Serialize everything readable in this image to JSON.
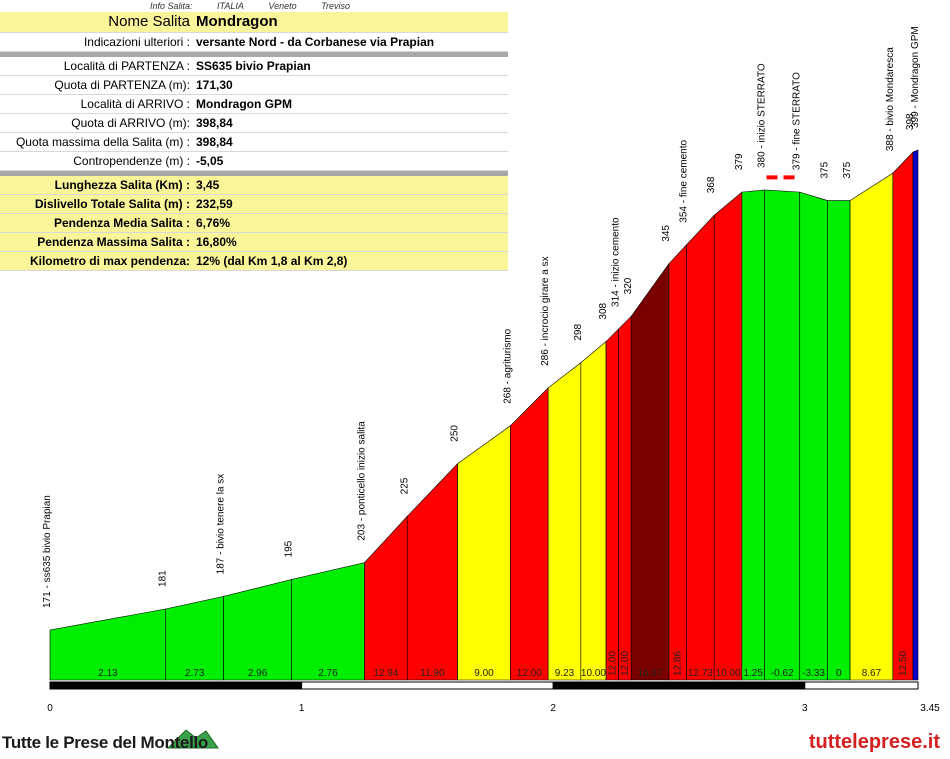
{
  "header": {
    "info_label": "Info Salita:",
    "country": "ITALIA",
    "region": "Veneto",
    "province": "Treviso"
  },
  "info": {
    "rows": [
      {
        "label": "Nome Salita",
        "value": "Mondragon",
        "style": "title"
      },
      {
        "label": "Indicazioni ulteriori :",
        "value": "versante Nord - da Corbanese via Prapian",
        "style": "plain"
      },
      {
        "style": "sep"
      },
      {
        "label": "Località di PARTENZA :",
        "value": "SS635 bivio Prapian",
        "style": "plain"
      },
      {
        "label": "Quota di PARTENZA (m):",
        "value": "171,30",
        "style": "plain"
      },
      {
        "label": "Località di ARRIVO :",
        "value": "Mondragon GPM",
        "style": "plain"
      },
      {
        "label": "Quota di ARRIVO (m):",
        "value": "398,84",
        "style": "plain"
      },
      {
        "label": "Quota massima della Salita (m) :",
        "value": "398,84",
        "style": "plain"
      },
      {
        "label": "Contropendenze (m) :",
        "value": "-5,05",
        "style": "plain"
      },
      {
        "style": "sep"
      },
      {
        "label": "Lunghezza Salita (Km) :",
        "value": "3,45",
        "style": "yellow"
      },
      {
        "label": "Dislivello Totale Salita (m) :",
        "value": "232,59",
        "style": "yellow"
      },
      {
        "label": "Pendenza Media Salita :",
        "value": "6,76%",
        "style": "yellow"
      },
      {
        "label": "Pendenza Massima Salita :",
        "value": "16,80%",
        "style": "yellow"
      },
      {
        "label": "Kilometro di max pendenza:",
        "value": "12%         (dal Km 1,8 al Km 2,8)",
        "style": "yellow"
      }
    ]
  },
  "chart_data": {
    "type": "area",
    "xlabel": "",
    "ylabel": "",
    "xlim": [
      0,
      3.45
    ],
    "x_ticks": [
      "0",
      "1",
      "2",
      "3",
      "3.45"
    ],
    "x_tick_values": [
      0,
      1,
      2,
      3,
      3.45
    ],
    "gradient_colors": {
      "0-4": "#00ee00",
      "4-9": "#ffff00",
      "9-15": "#ff0000",
      "15+": "#7a0000",
      "blue": "#0000cc"
    },
    "unpaved_marker_color": "#ff0000",
    "points": [
      {
        "x": 0.0,
        "elev": 171,
        "label": "171 - ss635 bivio Prapian"
      },
      {
        "x": 0.46,
        "elev": 181,
        "label": "181"
      },
      {
        "x": 0.69,
        "elev": 187,
        "label": "187 - bivio tenere la sx"
      },
      {
        "x": 0.96,
        "elev": 195,
        "label": "195"
      },
      {
        "x": 1.25,
        "elev": 203,
        "label": "203 - ponticello inizio salita"
      },
      {
        "x": 1.42,
        "elev": 225,
        "label": "225"
      },
      {
        "x": 1.62,
        "elev": 250,
        "label": "250"
      },
      {
        "x": 1.83,
        "elev": 268,
        "label": "268 - agriturismo"
      },
      {
        "x": 1.98,
        "elev": 286,
        "label": "286 - incrocio girare a sx"
      },
      {
        "x": 2.11,
        "elev": 298,
        "label": "298"
      },
      {
        "x": 2.21,
        "elev": 308,
        "label": "308"
      },
      {
        "x": 2.26,
        "elev": 314,
        "label": "314 - inizio cemento"
      },
      {
        "x": 2.31,
        "elev": 320,
        "label": "320"
      },
      {
        "x": 2.46,
        "elev": 345,
        "label": "345"
      },
      {
        "x": 2.53,
        "elev": 354,
        "label": "354 - fine cemento"
      },
      {
        "x": 2.64,
        "elev": 368,
        "label": "368"
      },
      {
        "x": 2.75,
        "elev": 379,
        "label": "379"
      },
      {
        "x": 2.84,
        "elev": 380,
        "label": "380 - inizio STERRATO"
      },
      {
        "x": 2.98,
        "elev": 379,
        "label": "379 - fine STERRATO"
      },
      {
        "x": 3.09,
        "elev": 375,
        "label": "375"
      },
      {
        "x": 3.18,
        "elev": 375,
        "label": "375"
      },
      {
        "x": 3.35,
        "elev": 388,
        "label": "388 - bivio Mondaresca"
      },
      {
        "x": 3.43,
        "elev": 398,
        "label": "398"
      },
      {
        "x": 3.45,
        "elev": 399,
        "label": "399 - Mondragon GPM"
      }
    ],
    "segments": [
      {
        "gradient": "2.13",
        "color": "#00ee00"
      },
      {
        "gradient": "2.73",
        "color": "#00ee00"
      },
      {
        "gradient": "2.96",
        "color": "#00ee00"
      },
      {
        "gradient": "2.76",
        "color": "#00ee00"
      },
      {
        "gradient": "12.94",
        "color": "#ff0000"
      },
      {
        "gradient": "11.90",
        "color": "#ff0000"
      },
      {
        "gradient": "9.00",
        "color": "#ffff00"
      },
      {
        "gradient": "12.00",
        "color": "#ff0000"
      },
      {
        "gradient": "9.23",
        "color": "#ffff00"
      },
      {
        "gradient": "10.00",
        "color": "#ffff00"
      },
      {
        "gradient": "12.00",
        "color": "#ff0000"
      },
      {
        "gradient": "12.00",
        "color": "#ff0000"
      },
      {
        "gradient": "16.67",
        "color": "#7a0000"
      },
      {
        "gradient": "12.86",
        "color": "#ff0000"
      },
      {
        "gradient": "12.73",
        "color": "#ff0000"
      },
      {
        "gradient": "10.00",
        "color": "#ff0000"
      },
      {
        "gradient": "1.25",
        "color": "#00ee00"
      },
      {
        "gradient": "-0.62",
        "color": "#00ee00"
      },
      {
        "gradient": "-3.33",
        "color": "#00ee00"
      },
      {
        "gradient": "0",
        "color": "#00ee00"
      },
      {
        "gradient": "8.67",
        "color": "#ffff00"
      },
      {
        "gradient": "12.50",
        "color": "#ff0000"
      },
      {
        "gradient": "",
        "color": "#0000cc"
      }
    ],
    "unpaved": {
      "from_x": 2.84,
      "to_x": 2.98
    }
  },
  "footer": {
    "logo_text": "Tutte le Prese del Montello",
    "site": "tutteleprese.it"
  }
}
